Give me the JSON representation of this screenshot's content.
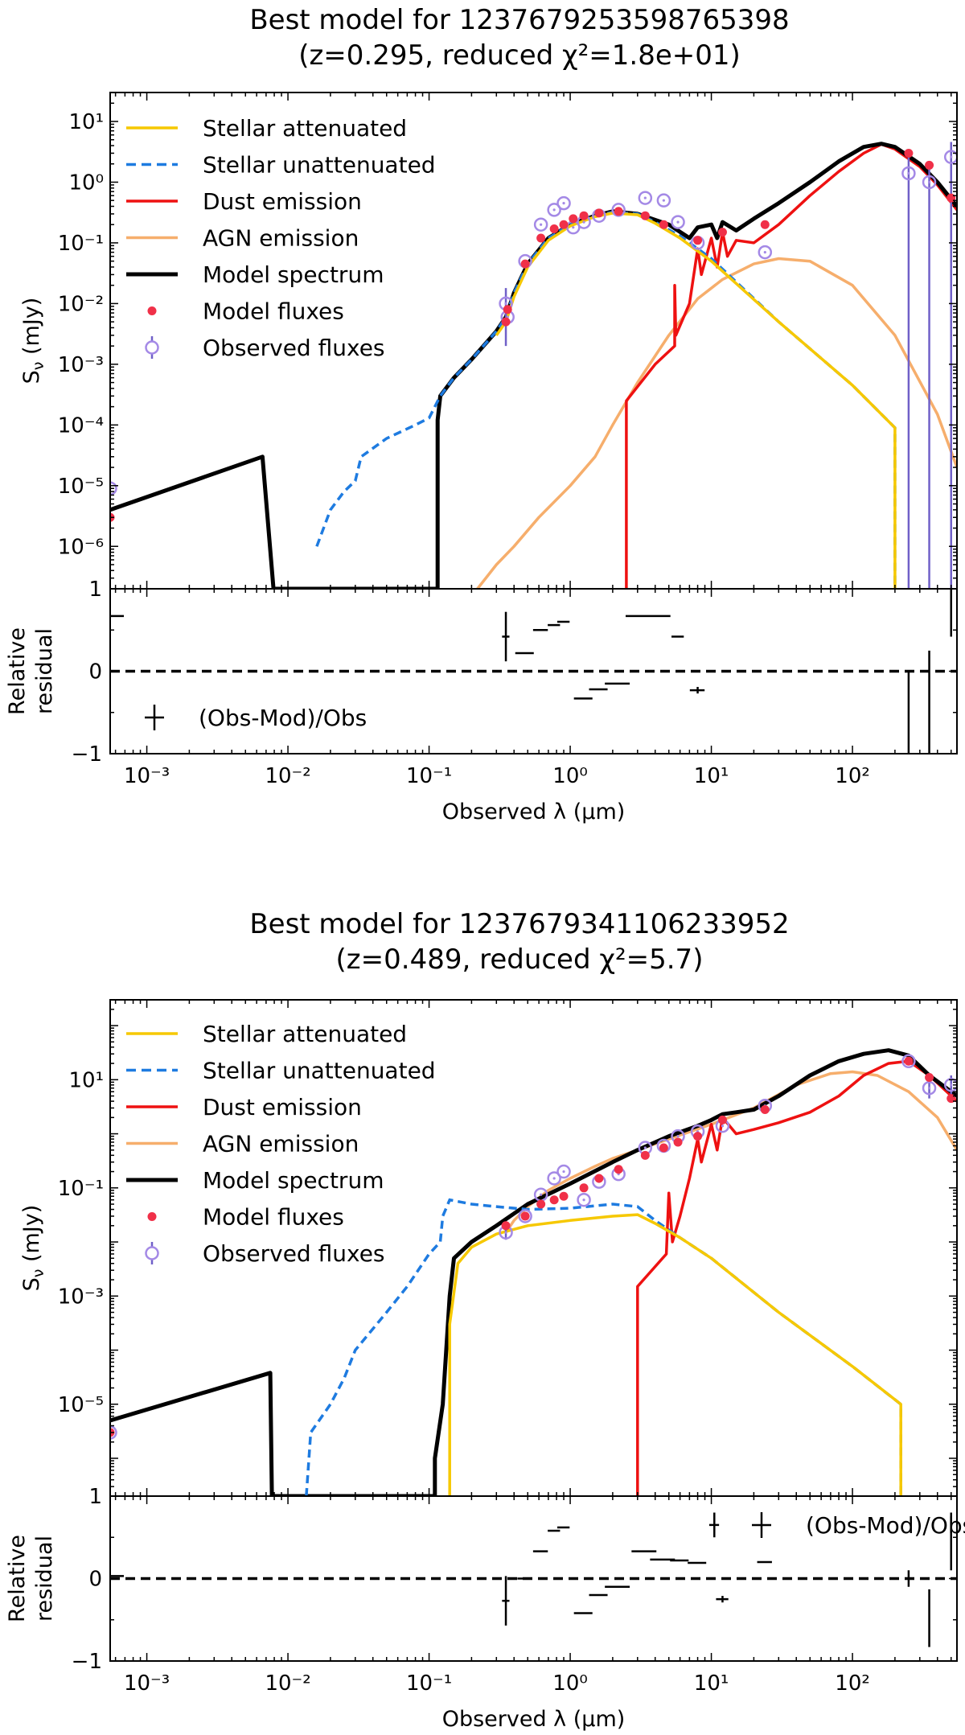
{
  "chart_data": [
    {
      "type": "line",
      "title_line1": "Best model for 1237679253598765398",
      "title_line2": "(z=0.295, reduced χ²=1.8e+01)",
      "xlabel": "Observed λ (μm)",
      "ylabel": "Sν (mJy)",
      "ylabel_main": "S",
      "ylabel_sub": "ν",
      "ylabel_units": " (mJy)",
      "xlim": [
        0.00055,
        550
      ],
      "ylim": [
        2e-07,
        30
      ],
      "ytick_labels": [
        "10⁻⁶",
        "10⁻⁵",
        "10⁻⁴",
        "10⁻³",
        "10⁻²",
        "10⁻¹",
        "10⁰",
        "10¹"
      ],
      "ytick_values": [
        1e-06,
        1e-05,
        0.0001,
        0.001,
        0.01,
        0.1,
        1,
        10
      ],
      "xtick_labels": [
        "10⁻³",
        "10⁻²",
        "10⁻¹",
        "10⁰",
        "10¹",
        "10²"
      ],
      "xtick_values": [
        0.001,
        0.01,
        0.1,
        1,
        10,
        100
      ],
      "legend": [
        "Stellar attenuated",
        "Stellar unattenuated",
        "Dust emission",
        "AGN emission",
        "Model spectrum",
        "Model fluxes",
        "Observed fluxes"
      ],
      "series": [
        {
          "name": "Stellar unattenuated",
          "x": [
            0.016,
            0.02,
            0.025,
            0.03,
            0.033,
            0.05,
            0.08,
            0.1,
            0.12,
            0.15,
            0.2,
            0.3,
            0.35,
            0.4,
            0.5,
            0.7,
            1.0,
            1.5,
            2.0,
            3.0,
            4.0,
            6.0,
            10.0,
            30.0,
            100.0,
            200.0,
            200.0
          ],
          "y": [
            1e-06,
            4e-06,
            8e-06,
            1.2e-05,
            3e-05,
            6e-05,
            0.0001,
            0.00013,
            0.0003,
            0.0006,
            0.0012,
            0.0035,
            0.006,
            0.015,
            0.045,
            0.12,
            0.2,
            0.28,
            0.32,
            0.3,
            0.22,
            0.13,
            0.055,
            0.005,
            0.00045,
            9e-05,
            2e-07
          ]
        },
        {
          "name": "Stellar attenuated",
          "x": [
            0.3,
            0.35,
            0.4,
            0.5,
            0.7,
            1.0,
            1.5,
            2.0,
            3.0,
            4.0,
            6.0,
            10.0,
            30.0,
            100.0,
            200.0,
            200.0
          ],
          "y": [
            0.003,
            0.005,
            0.013,
            0.04,
            0.11,
            0.19,
            0.27,
            0.31,
            0.29,
            0.21,
            0.12,
            0.05,
            0.005,
            0.00045,
            9e-05,
            2e-07
          ]
        },
        {
          "name": "Dust emission",
          "x": [
            2.5,
            2.5,
            4.0,
            5.5,
            5.5,
            5.6,
            7.0,
            8.0,
            8.5,
            10.0,
            11.0,
            12.0,
            13.0,
            15.0,
            20.0,
            30.0,
            50.0,
            80.0,
            120.0,
            160.0,
            200.0,
            300.0,
            400.0,
            550.0
          ],
          "y": [
            2e-07,
            0.00025,
            0.001,
            0.002,
            0.02,
            0.003,
            0.01,
            0.08,
            0.03,
            0.12,
            0.04,
            0.15,
            0.06,
            0.11,
            0.1,
            0.2,
            0.6,
            1.5,
            3.0,
            4.2,
            3.5,
            1.8,
            0.9,
            0.35
          ]
        },
        {
          "name": "AGN emission",
          "x": [
            0.22,
            0.3,
            0.4,
            0.6,
            1.0,
            1.5,
            2.0,
            3.0,
            5.0,
            8.0,
            12.0,
            20.0,
            30.0,
            50.0,
            100.0,
            200.0,
            400.0,
            550.0
          ],
          "y": [
            2e-07,
            5e-07,
            1e-06,
            3e-06,
            1e-05,
            3e-05,
            0.0001,
            0.0005,
            0.003,
            0.012,
            0.025,
            0.045,
            0.055,
            0.05,
            0.02,
            0.003,
            0.00015,
            2e-05
          ]
        },
        {
          "name": "Model spectrum",
          "x": [
            0.00055,
            0.0066,
            0.0079,
            0.0079,
            0.115,
            0.115,
            0.12,
            0.15,
            0.2,
            0.3,
            0.35,
            0.4,
            0.5,
            0.7,
            1.0,
            1.5,
            2.0,
            3.0,
            5.0,
            7.0,
            8.0,
            10.0,
            11.0,
            12.0,
            15.0,
            20.0,
            30.0,
            50.0,
            80.0,
            120.0,
            160.0,
            200.0,
            300.0,
            400.0,
            550.0
          ],
          "y": [
            4e-06,
            3e-05,
            2e-07,
            2e-07,
            2e-07,
            0.00012,
            0.0003,
            0.0006,
            0.0012,
            0.0035,
            0.006,
            0.015,
            0.045,
            0.12,
            0.2,
            0.28,
            0.33,
            0.3,
            0.2,
            0.12,
            0.18,
            0.2,
            0.12,
            0.22,
            0.16,
            0.25,
            0.45,
            1.0,
            2.2,
            3.8,
            4.3,
            3.8,
            2.0,
            1.0,
            0.4
          ]
        }
      ],
      "model_fluxes": {
        "x": [
          0.00055,
          0.35,
          0.36,
          0.48,
          0.62,
          0.77,
          0.9,
          1.05,
          1.25,
          1.6,
          2.2,
          3.4,
          4.6,
          8.0,
          12.0,
          24.0,
          250.0,
          350.0,
          500.0
        ],
        "y": [
          3e-06,
          0.005,
          0.008,
          0.045,
          0.12,
          0.17,
          0.2,
          0.25,
          0.28,
          0.31,
          0.33,
          0.28,
          0.2,
          0.11,
          0.15,
          0.2,
          3.0,
          1.9,
          0.55
        ]
      },
      "observed_fluxes": {
        "x": [
          0.00055,
          0.35,
          0.36,
          0.48,
          0.62,
          0.77,
          0.9,
          1.05,
          1.25,
          1.6,
          2.2,
          3.4,
          4.6,
          5.8,
          8.0,
          24.0,
          250.0,
          350.0,
          500.0
        ],
        "y": [
          9e-06,
          0.01,
          0.006,
          0.05,
          0.2,
          0.35,
          0.45,
          0.18,
          0.22,
          0.28,
          0.35,
          0.55,
          0.5,
          0.22,
          0.1,
          0.07,
          1.4,
          1.0,
          2.6
        ],
        "yerr_lo": [
          0,
          0.008,
          0,
          0,
          0,
          0,
          0,
          0,
          0,
          0,
          0,
          0,
          0,
          0,
          0,
          0,
          1.4,
          1.0,
          2.6
        ],
        "yerr_hi": [
          0,
          0.008,
          0,
          0,
          0,
          0,
          0,
          0,
          0,
          0,
          0,
          0,
          0,
          0,
          0,
          0,
          1.2,
          1.0,
          2.0
        ]
      },
      "residual": {
        "ylabel_line1": "Relative",
        "ylabel_line2": "residual",
        "ylim": [
          -1,
          1
        ],
        "ytick_labels": [
          "−1",
          "0",
          "1"
        ],
        "ytick_values": [
          -1,
          0,
          1
        ],
        "legend": "(Obs-Mod)/Obs",
        "legend_position": "bottom-left",
        "x": [
          0.00055,
          0.35,
          0.48,
          0.62,
          0.77,
          0.9,
          1.25,
          1.6,
          2.2,
          3.8,
          5.8,
          8.0,
          250.0,
          350.0,
          500.0
        ],
        "y": [
          0.67,
          0.42,
          0.22,
          0.5,
          0.56,
          0.6,
          -0.33,
          -0.22,
          -0.15,
          0.67,
          0.42,
          -0.23,
          -1.05,
          -0.55,
          0.77
        ],
        "yerr": [
          0.0,
          0.3,
          0.0,
          0.0,
          0.0,
          0.0,
          0.0,
          0.0,
          0.0,
          0.0,
          0.0,
          0.04,
          1.05,
          0.8,
          0.35
        ],
        "xerr_frac": [
          0.25,
          0.06,
          0.15,
          0.12,
          0.1,
          0.1,
          0.15,
          0.15,
          0.2,
          0.35,
          0.1,
          0.12,
          0.0,
          0.0,
          0.0
        ]
      }
    },
    {
      "type": "line",
      "title_line1": "Best model for 1237679341106233952",
      "title_line2": "(z=0.489, reduced χ²=5.7)",
      "xlabel": "Observed λ (μm)",
      "ylabel": "Sν (mJy)",
      "ylabel_main": "S",
      "ylabel_sub": "ν",
      "ylabel_units": " (mJy)",
      "xlim": [
        0.00055,
        550
      ],
      "ylim": [
        2e-07,
        300
      ],
      "ytick_labels": [
        "10⁻⁵",
        "10⁻³",
        "10⁻¹",
        "10¹"
      ],
      "ytick_values": [
        1e-05,
        0.001,
        0.1,
        10
      ],
      "xtick_labels": [
        "10⁻³",
        "10⁻²",
        "10⁻¹",
        "10⁰",
        "10¹",
        "10²"
      ],
      "xtick_values": [
        0.001,
        0.01,
        0.1,
        1,
        10,
        100
      ],
      "legend": [
        "Stellar attenuated",
        "Stellar unattenuated",
        "Dust emission",
        "AGN emission",
        "Model spectrum",
        "Model fluxes",
        "Observed fluxes"
      ],
      "series": [
        {
          "name": "Stellar unattenuated",
          "x": [
            0.0135,
            0.0145,
            0.02,
            0.025,
            0.03,
            0.05,
            0.07,
            0.1,
            0.12,
            0.125,
            0.14,
            0.2,
            0.3,
            0.5,
            1.0,
            2.0,
            3.0,
            4.0,
            6.0,
            10.0,
            30.0,
            100.0,
            220.0,
            220.0
          ],
          "y": [
            2e-07,
            3e-06,
            1e-05,
            3e-05,
            0.0001,
            0.0005,
            0.0015,
            0.006,
            0.01,
            0.03,
            0.06,
            0.05,
            0.045,
            0.04,
            0.042,
            0.05,
            0.045,
            0.025,
            0.012,
            0.005,
            0.0005,
            5e-05,
            1e-05,
            2e-07
          ]
        },
        {
          "name": "Stellar attenuated",
          "x": [
            0.14,
            0.14,
            0.16,
            0.2,
            0.3,
            0.5,
            1.0,
            2.0,
            3.0,
            4.0,
            6.0,
            10.0,
            30.0,
            100.0,
            220.0,
            220.0
          ],
          "y": [
            2e-07,
            0.0003,
            0.004,
            0.008,
            0.014,
            0.02,
            0.025,
            0.03,
            0.032,
            0.022,
            0.012,
            0.005,
            0.0005,
            5e-05,
            1e-05,
            2e-07
          ]
        },
        {
          "name": "Dust emission",
          "x": [
            3.0,
            3.0,
            4.8,
            5.0,
            5.3,
            6.0,
            7.0,
            8.0,
            8.5,
            10.0,
            11.0,
            12.0,
            15.0,
            20.0,
            30.0,
            50.0,
            80.0,
            120.0,
            180.0,
            250.0,
            350.0,
            550.0
          ],
          "y": [
            2e-07,
            0.0015,
            0.006,
            0.08,
            0.01,
            0.03,
            0.15,
            0.8,
            0.3,
            1.5,
            0.5,
            2.0,
            1.0,
            1.2,
            1.6,
            2.5,
            5.0,
            12.0,
            20.0,
            22.0,
            12.0,
            4.0
          ]
        },
        {
          "name": "AGN emission",
          "x": [
            0.35,
            0.4,
            0.5,
            0.7,
            1.0,
            1.5,
            2.0,
            3.0,
            5.0,
            10.0,
            20.0,
            40.0,
            70.0,
            100.0,
            150.0,
            250.0,
            400.0,
            550.0
          ],
          "y": [
            0.015,
            0.025,
            0.045,
            0.09,
            0.15,
            0.25,
            0.35,
            0.5,
            0.8,
            1.5,
            3.0,
            8.0,
            13.0,
            14.0,
            12.0,
            6.0,
            2.0,
            0.5
          ]
        },
        {
          "name": "Model spectrum",
          "x": [
            0.00055,
            0.0075,
            0.0077,
            0.0077,
            0.11,
            0.11,
            0.125,
            0.14,
            0.15,
            0.2,
            0.3,
            0.5,
            1.0,
            2.0,
            3.0,
            5.0,
            8.0,
            10.0,
            12.0,
            15.0,
            20.0,
            30.0,
            50.0,
            80.0,
            120.0,
            180.0,
            250.0,
            350.0,
            550.0
          ],
          "y": [
            5e-06,
            3.8e-05,
            2e-07,
            2e-07,
            2e-07,
            1e-06,
            1e-05,
            0.001,
            0.005,
            0.01,
            0.02,
            0.05,
            0.12,
            0.3,
            0.5,
            0.9,
            1.4,
            1.8,
            2.3,
            2.5,
            2.8,
            5.0,
            12.0,
            22.0,
            30.0,
            35.0,
            28.0,
            12.0,
            5.0
          ]
        }
      ],
      "model_fluxes": {
        "x": [
          0.00055,
          0.35,
          0.48,
          0.62,
          0.77,
          0.9,
          1.25,
          1.6,
          2.2,
          3.4,
          4.6,
          5.8,
          8.0,
          12.0,
          24.0,
          250.0,
          350.0,
          500.0
        ],
        "y": [
          3e-06,
          0.02,
          0.03,
          0.05,
          0.06,
          0.07,
          0.1,
          0.15,
          0.22,
          0.4,
          0.55,
          0.7,
          0.9,
          1.8,
          2.8,
          22.0,
          11.0,
          4.5
        ]
      },
      "observed_fluxes": {
        "x": [
          0.00055,
          0.35,
          0.48,
          0.62,
          0.77,
          0.9,
          1.25,
          1.6,
          2.2,
          3.4,
          4.6,
          5.8,
          8.0,
          12.0,
          24.0,
          250.0,
          350.0,
          500.0
        ],
        "y": [
          3e-06,
          0.015,
          0.03,
          0.075,
          0.15,
          0.2,
          0.06,
          0.13,
          0.18,
          0.55,
          0.6,
          0.9,
          1.1,
          1.4,
          3.3,
          22.0,
          7.0,
          8.0
        ],
        "yerr_lo": [
          0,
          0.004,
          0,
          0,
          0,
          0,
          0,
          0,
          0,
          0,
          0,
          0,
          0,
          0,
          0,
          3.0,
          2.5,
          3.0
        ],
        "yerr_hi": [
          0,
          0.004,
          0,
          0,
          0,
          0,
          0,
          0,
          0,
          0,
          0,
          0,
          0,
          0,
          0,
          3.0,
          2.5,
          4.0
        ]
      },
      "residual": {
        "ylabel_line1": "Relative",
        "ylabel_line2": "residual",
        "ylim": [
          -1,
          1
        ],
        "ytick_labels": [
          "−1",
          "0",
          "1"
        ],
        "ytick_values": [
          -1,
          0,
          1
        ],
        "legend": "(Obs-Mod)/Obs",
        "legend_position": "top-right",
        "x": [
          0.00055,
          0.35,
          0.48,
          0.62,
          0.77,
          0.9,
          1.25,
          1.6,
          2.2,
          3.4,
          4.6,
          6.0,
          8.0,
          10.5,
          12.0,
          24.0,
          250.0,
          350.0,
          500.0
        ],
        "y": [
          0.03,
          -0.27,
          0.0,
          0.33,
          0.58,
          0.62,
          -0.42,
          -0.2,
          -0.1,
          0.33,
          0.23,
          0.22,
          0.19,
          0.65,
          -0.25,
          0.2,
          0.0,
          -0.48,
          0.45
        ],
        "yerr": [
          0.0,
          0.3,
          0.0,
          0.0,
          0.0,
          0.0,
          0.0,
          0.0,
          0.0,
          0.0,
          0.0,
          0.0,
          0.0,
          0.15,
          0.04,
          0.0,
          0.1,
          0.35,
          0.35
        ],
        "xerr_frac": [
          0.25,
          0.06,
          0.12,
          0.12,
          0.1,
          0.1,
          0.15,
          0.15,
          0.2,
          0.2,
          0.2,
          0.15,
          0.15,
          0.08,
          0.1,
          0.12,
          0.0,
          0.0,
          0.0
        ]
      }
    }
  ],
  "colors": {
    "Stellar attenuated": "#f6c800",
    "Stellar unattenuated": "#1e7be0",
    "Dust emission": "#ee1111",
    "AGN emission": "#f6ae6c",
    "Model spectrum": "#000000",
    "Model fluxes": "#f03048",
    "Observed fluxes": "#a489e6"
  }
}
